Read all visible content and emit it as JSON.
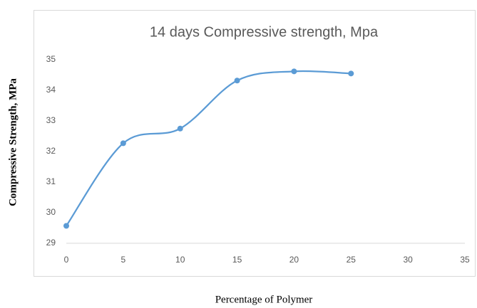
{
  "chart_data": {
    "type": "line",
    "title": "14 days Compressive strength, Mpa",
    "xlabel": "Percentage of Polymer",
    "ylabel": "Compressive Strength, MPa",
    "x": [
      0,
      5,
      10,
      15,
      20,
      25
    ],
    "values": [
      29.57,
      32.27,
      32.75,
      34.32,
      34.62,
      34.55
    ],
    "color": "#5b9bd5",
    "smooth": true,
    "markers": true,
    "grid": false,
    "xlim": [
      0,
      35
    ],
    "xticks": [
      0,
      5,
      10,
      15,
      20,
      25,
      30,
      35
    ],
    "ylim": [
      29,
      35
    ],
    "yticks": [
      29,
      30,
      31,
      32,
      33,
      34,
      35
    ]
  }
}
